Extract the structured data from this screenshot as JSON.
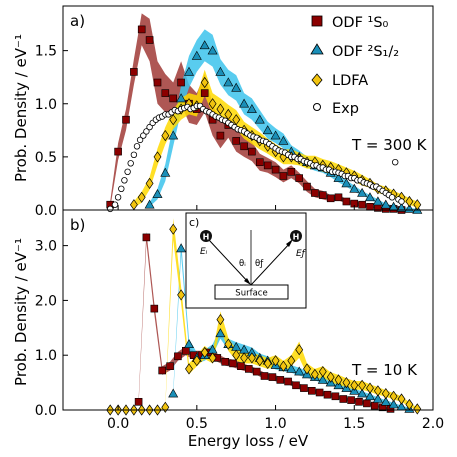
{
  "chart_data": [
    {
      "panel_label": "a)",
      "type": "scatter",
      "xlim": [
        -0.35,
        2.0
      ],
      "ylim": [
        0,
        1.92
      ],
      "yticks": [
        "0.0",
        "0.5",
        "1.0",
        "1.5"
      ],
      "ytick_values": [
        0,
        0.5,
        1.0,
        1.5
      ],
      "ylabel": "Prob. Density / eV⁻¹",
      "annotation": "T = 300 K",
      "legend_position": "top-right",
      "legend": [
        {
          "key": "odf1",
          "label": "ODF ¹S₀"
        },
        {
          "key": "odf2",
          "label": "ODF ²S₁/₂"
        },
        {
          "key": "ldfa",
          "label": "LDFA"
        },
        {
          "key": "exp",
          "label": "Exp"
        }
      ],
      "series": [
        {
          "key": "odf1",
          "marker": "square",
          "color": "#8b0000",
          "band_color": "#a03a36",
          "x": [
            -0.05,
            0.0,
            0.05,
            0.1,
            0.15,
            0.2,
            0.25,
            0.3,
            0.35,
            0.4,
            0.45,
            0.5,
            0.55,
            0.6,
            0.65,
            0.7,
            0.75,
            0.8,
            0.85,
            0.9,
            0.95,
            1.0,
            1.05,
            1.1,
            1.15,
            1.2,
            1.25,
            1.3,
            1.35,
            1.4,
            1.45,
            1.5,
            1.55,
            1.6,
            1.65,
            1.7,
            1.75,
            1.8
          ],
          "y": [
            0.05,
            0.55,
            0.85,
            1.3,
            1.7,
            1.6,
            1.2,
            1.1,
            1.05,
            1.2,
            1.0,
            0.95,
            1.1,
            0.85,
            0.7,
            0.8,
            0.65,
            0.6,
            0.55,
            0.45,
            0.42,
            0.38,
            0.32,
            0.36,
            0.3,
            0.22,
            0.16,
            0.14,
            0.11,
            0.12,
            0.08,
            0.06,
            0.05,
            0.03,
            0.02,
            0.01,
            0.01,
            0.0
          ],
          "band_half_width": [
            0.03,
            0.08,
            0.1,
            0.12,
            0.15,
            0.2,
            0.2,
            0.18,
            0.15,
            0.2,
            0.18,
            0.15,
            0.18,
            0.15,
            0.12,
            0.12,
            0.1,
            0.1,
            0.09,
            0.08,
            0.07,
            0.07,
            0.06,
            0.06,
            0.05,
            0.05,
            0.04,
            0.04,
            0.03,
            0.03,
            0.02,
            0.02,
            0.02,
            0.01,
            0.01,
            0.01,
            0.01,
            0.01
          ]
        },
        {
          "key": "odf2",
          "marker": "triangle",
          "color": "#1a8fb8",
          "band_color": "#3cc3ec",
          "x": [
            0.2,
            0.25,
            0.3,
            0.35,
            0.4,
            0.45,
            0.5,
            0.55,
            0.6,
            0.65,
            0.7,
            0.75,
            0.8,
            0.85,
            0.9,
            0.95,
            1.0,
            1.05,
            1.1,
            1.15,
            1.2,
            1.25,
            1.3,
            1.35,
            1.4,
            1.45,
            1.5,
            1.55,
            1.6,
            1.65,
            1.7,
            1.75,
            1.8,
            1.85,
            1.9
          ],
          "y": [
            0.05,
            0.15,
            0.35,
            0.7,
            1.05,
            1.3,
            1.45,
            1.55,
            1.5,
            1.3,
            1.2,
            1.15,
            1.0,
            0.95,
            0.85,
            0.75,
            0.7,
            0.65,
            0.55,
            0.5,
            0.45,
            0.42,
            0.4,
            0.35,
            0.3,
            0.25,
            0.2,
            0.16,
            0.12,
            0.08,
            0.05,
            0.03,
            0.02,
            0.01,
            0.0
          ],
          "band_half_width": [
            0.02,
            0.05,
            0.08,
            0.1,
            0.12,
            0.15,
            0.15,
            0.15,
            0.15,
            0.12,
            0.12,
            0.12,
            0.1,
            0.1,
            0.09,
            0.08,
            0.07,
            0.07,
            0.06,
            0.06,
            0.05,
            0.05,
            0.05,
            0.04,
            0.04,
            0.03,
            0.03,
            0.02,
            0.02,
            0.02,
            0.01,
            0.01,
            0.01,
            0.01,
            0.01
          ]
        },
        {
          "key": "ldfa",
          "marker": "diamond",
          "color": "#f2c40f",
          "band_color": "#ffd900",
          "x": [
            0.1,
            0.15,
            0.2,
            0.25,
            0.3,
            0.35,
            0.4,
            0.45,
            0.5,
            0.55,
            0.6,
            0.65,
            0.7,
            0.75,
            0.8,
            0.85,
            0.9,
            0.95,
            1.0,
            1.05,
            1.1,
            1.15,
            1.2,
            1.25,
            1.3,
            1.35,
            1.4,
            1.45,
            1.5,
            1.55,
            1.6,
            1.65,
            1.7,
            1.75,
            1.8,
            1.85,
            1.9
          ],
          "y": [
            0.05,
            0.12,
            0.25,
            0.5,
            0.7,
            0.85,
            0.95,
            1.0,
            0.98,
            1.2,
            1.0,
            0.95,
            0.9,
            0.85,
            0.75,
            0.7,
            0.65,
            0.6,
            0.55,
            0.5,
            0.5,
            0.48,
            0.45,
            0.45,
            0.42,
            0.4,
            0.38,
            0.35,
            0.32,
            0.28,
            0.25,
            0.2,
            0.18,
            0.15,
            0.12,
            0.08,
            0.05
          ],
          "band_half_width": [
            0.03,
            0.05,
            0.06,
            0.08,
            0.08,
            0.09,
            0.1,
            0.1,
            0.1,
            0.12,
            0.1,
            0.1,
            0.09,
            0.09,
            0.08,
            0.08,
            0.08,
            0.07,
            0.07,
            0.07,
            0.07,
            0.06,
            0.06,
            0.06,
            0.06,
            0.06,
            0.05,
            0.05,
            0.05,
            0.05,
            0.04,
            0.04,
            0.04,
            0.03,
            0.03,
            0.03,
            0.03
          ]
        },
        {
          "key": "exp",
          "marker": "circle",
          "color": "#ffffff",
          "x": [
            -0.05,
            -0.02,
            0.0,
            0.02,
            0.04,
            0.06,
            0.08,
            0.1,
            0.12,
            0.14,
            0.16,
            0.18,
            0.2,
            0.22,
            0.24,
            0.26,
            0.28,
            0.3,
            0.32,
            0.34,
            0.36,
            0.38,
            0.4,
            0.42,
            0.44,
            0.46,
            0.48,
            0.5,
            0.52,
            0.54,
            0.56,
            0.58,
            0.6,
            0.62,
            0.64,
            0.66,
            0.68,
            0.7,
            0.72,
            0.74,
            0.76,
            0.78,
            0.8,
            0.82,
            0.84,
            0.86,
            0.88,
            0.9,
            0.92,
            0.94,
            0.96,
            0.98,
            1.0,
            1.02,
            1.04,
            1.06,
            1.08,
            1.1,
            1.12,
            1.14,
            1.16,
            1.18,
            1.2,
            1.22,
            1.24,
            1.26,
            1.28,
            1.3,
            1.32,
            1.34,
            1.36,
            1.38,
            1.4,
            1.42,
            1.44,
            1.46,
            1.48,
            1.5,
            1.52,
            1.54,
            1.56,
            1.58,
            1.6,
            1.62,
            1.64,
            1.66,
            1.68,
            1.7,
            1.72,
            1.74,
            1.76,
            1.78,
            1.8
          ],
          "y": [
            0.01,
            0.05,
            0.12,
            0.2,
            0.28,
            0.36,
            0.44,
            0.52,
            0.6,
            0.66,
            0.7,
            0.74,
            0.78,
            0.82,
            0.85,
            0.87,
            0.88,
            0.9,
            0.9,
            0.92,
            0.94,
            0.93,
            0.95,
            0.96,
            0.97,
            0.95,
            0.96,
            0.98,
            0.98,
            0.95,
            0.93,
            0.92,
            0.9,
            0.88,
            0.87,
            0.85,
            0.84,
            0.82,
            0.8,
            0.78,
            0.76,
            0.75,
            0.74,
            0.72,
            0.7,
            0.69,
            0.68,
            0.66,
            0.65,
            0.64,
            0.62,
            0.6,
            0.58,
            0.56,
            0.55,
            0.54,
            0.52,
            0.5,
            0.5,
            0.48,
            0.48,
            0.46,
            0.45,
            0.44,
            0.42,
            0.42,
            0.4,
            0.4,
            0.38,
            0.38,
            0.36,
            0.36,
            0.35,
            0.34,
            0.32,
            0.32,
            0.3,
            0.3,
            0.28,
            0.28,
            0.26,
            0.25,
            0.24,
            0.22,
            0.22,
            0.2,
            0.18,
            0.16,
            0.14,
            0.12,
            0.45,
            0.1,
            0.08
          ]
        }
      ]
    },
    {
      "panel_label": "b)",
      "type": "scatter",
      "xlim": [
        -0.35,
        2.0
      ],
      "ylim": [
        0,
        3.65
      ],
      "xticks": [
        "0.0",
        "0.5",
        "1.0",
        "1.5",
        "2.0"
      ],
      "xtick_values": [
        0,
        0.5,
        1.0,
        1.5,
        2.0
      ],
      "yticks": [
        "0.0",
        "1.0",
        "2.0",
        "3.0"
      ],
      "ytick_values": [
        0,
        1.0,
        2.0,
        3.0
      ],
      "xlabel": "Energy loss / eV",
      "ylabel": "Prob. Density / eV⁻¹",
      "annotation": "T = 10 K",
      "series": [
        {
          "key": "odf1",
          "marker": "square",
          "color": "#8b0000",
          "band_color": "#a03a36",
          "x": [
            0.13,
            0.18,
            0.23,
            0.28,
            0.33,
            0.38,
            0.43,
            0.48,
            0.53,
            0.58,
            0.63,
            0.68,
            0.73,
            0.78,
            0.83,
            0.88,
            0.93,
            0.98,
            1.03,
            1.08,
            1.13,
            1.18,
            1.23,
            1.28,
            1.33,
            1.38,
            1.43,
            1.48,
            1.53,
            1.58,
            1.63,
            1.68,
            1.73
          ],
          "y": [
            0.15,
            3.15,
            1.85,
            0.72,
            0.8,
            0.98,
            1.08,
            1.0,
            1.0,
            1.05,
            0.95,
            0.88,
            0.85,
            0.8,
            0.75,
            0.7,
            0.62,
            0.6,
            0.55,
            0.52,
            0.45,
            0.4,
            0.35,
            0.32,
            0.28,
            0.25,
            0.2,
            0.18,
            0.15,
            0.12,
            0.08,
            0.05,
            0.02
          ],
          "band_half_width": [
            0.05,
            0.1,
            0.1,
            0.08,
            0.08,
            0.08,
            0.08,
            0.08,
            0.08,
            0.08,
            0.07,
            0.07,
            0.07,
            0.07,
            0.06,
            0.06,
            0.06,
            0.06,
            0.05,
            0.05,
            0.05,
            0.05,
            0.04,
            0.04,
            0.04,
            0.04,
            0.03,
            0.03,
            0.03,
            0.03,
            0.02,
            0.02,
            0.02
          ]
        },
        {
          "key": "odf2",
          "marker": "triangle",
          "color": "#1a8fb8",
          "band_color": "#3cc3ec",
          "x": [
            0.35,
            0.4,
            0.45,
            0.5,
            0.55,
            0.6,
            0.65,
            0.7,
            0.75,
            0.8,
            0.85,
            0.9,
            0.95,
            1.0,
            1.05,
            1.1,
            1.15,
            1.2,
            1.25,
            1.3,
            1.35,
            1.4,
            1.45,
            1.5,
            1.55,
            1.6,
            1.65,
            1.7,
            1.75,
            1.8,
            1.85
          ],
          "y": [
            0.3,
            2.95,
            1.2,
            0.95,
            1.0,
            1.1,
            1.4,
            1.2,
            1.15,
            1.1,
            1.05,
            0.95,
            0.9,
            0.82,
            0.78,
            0.75,
            0.7,
            0.65,
            0.6,
            0.55,
            0.5,
            0.45,
            0.4,
            0.35,
            0.3,
            0.25,
            0.2,
            0.15,
            0.1,
            0.06,
            0.02
          ],
          "band_half_width": [
            0.05,
            0.12,
            0.1,
            0.1,
            0.1,
            0.1,
            0.1,
            0.1,
            0.09,
            0.09,
            0.09,
            0.08,
            0.08,
            0.08,
            0.07,
            0.07,
            0.07,
            0.06,
            0.06,
            0.06,
            0.05,
            0.05,
            0.05,
            0.04,
            0.04,
            0.04,
            0.03,
            0.03,
            0.03,
            0.02,
            0.02
          ]
        },
        {
          "key": "ldfa",
          "marker": "diamond",
          "color": "#f2c40f",
          "band_color": "#ffd900",
          "x": [
            -0.05,
            0.0,
            0.05,
            0.1,
            0.15,
            0.2,
            0.25,
            0.3,
            0.35,
            0.4,
            0.45,
            0.5,
            0.55,
            0.6,
            0.65,
            0.7,
            0.75,
            0.8,
            0.85,
            0.9,
            0.95,
            1.0,
            1.05,
            1.1,
            1.15,
            1.2,
            1.25,
            1.3,
            1.35,
            1.4,
            1.45,
            1.5,
            1.55,
            1.6,
            1.65,
            1.7,
            1.75,
            1.8,
            1.85,
            1.9
          ],
          "y": [
            0.0,
            0.0,
            0.0,
            0.0,
            0.0,
            0.0,
            0.0,
            0.05,
            3.3,
            2.1,
            0.75,
            0.9,
            1.05,
            0.95,
            1.65,
            1.2,
            1.0,
            0.95,
            0.95,
            0.9,
            0.85,
            0.9,
            0.8,
            0.9,
            1.1,
            0.75,
            0.65,
            0.7,
            0.6,
            0.55,
            0.5,
            0.45,
            0.45,
            0.4,
            0.35,
            0.3,
            0.25,
            0.2,
            0.1,
            0.02
          ],
          "band_half_width": [
            0.0,
            0.0,
            0.0,
            0.0,
            0.0,
            0.0,
            0.0,
            0.03,
            0.2,
            0.15,
            0.1,
            0.1,
            0.12,
            0.1,
            0.15,
            0.12,
            0.1,
            0.1,
            0.1,
            0.1,
            0.1,
            0.1,
            0.1,
            0.1,
            0.15,
            0.1,
            0.1,
            0.1,
            0.09,
            0.09,
            0.08,
            0.08,
            0.08,
            0.07,
            0.07,
            0.06,
            0.06,
            0.05,
            0.04,
            0.02
          ]
        }
      ],
      "inset": {
        "label": "c)",
        "surface_label": "Surface",
        "atom_label": "H",
        "ei_label": "Eᵢ",
        "ef_label": "Eƒ",
        "theta_i_label": "θᵢ",
        "theta_f_label": "θƒ"
      }
    }
  ]
}
